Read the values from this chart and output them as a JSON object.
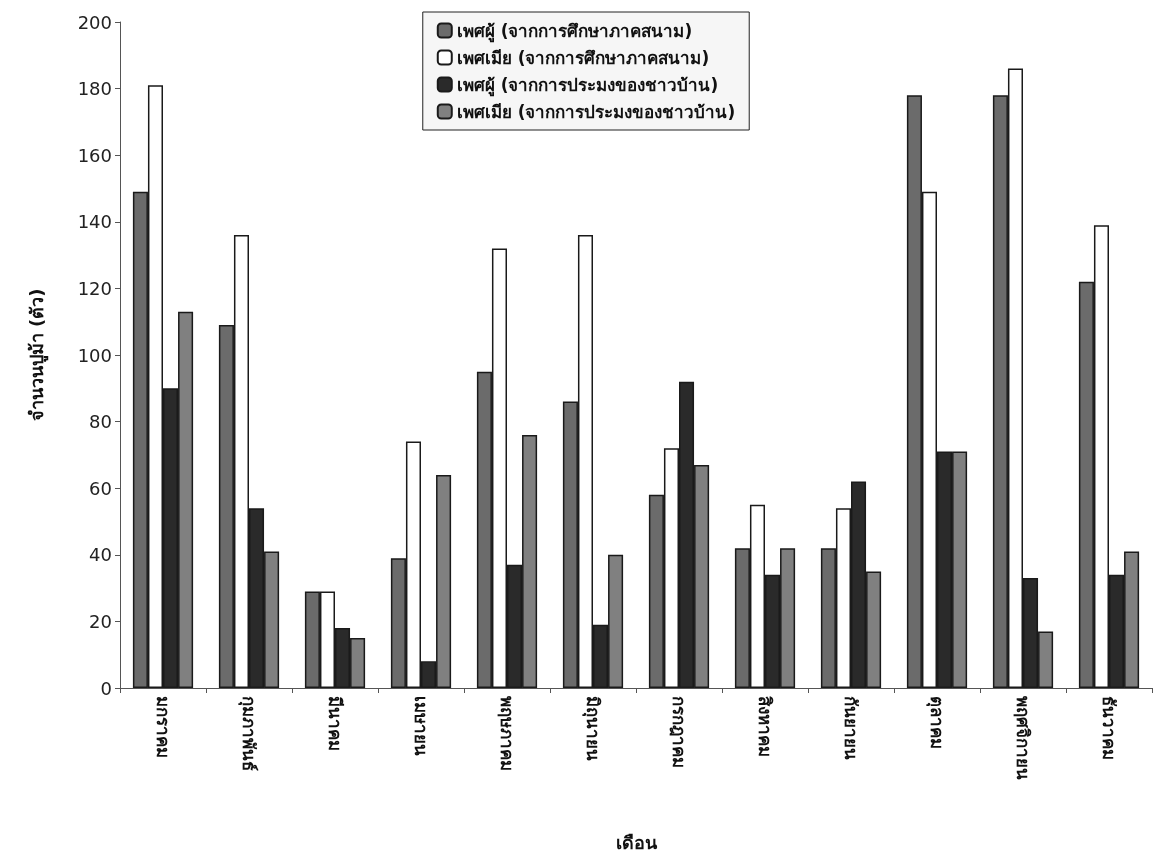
{
  "chart_data": {
    "type": "bar",
    "xlabel": "เดือน",
    "ylabel": "จำนวนปูม้า (ตัว)",
    "categories": [
      "มกราคม",
      "กุมภาพันธ์",
      "มีนาคม",
      "เมษายน",
      "พฤษภาคม",
      "มิถุนายน",
      "กรกฎาคม",
      "สิงหาคม",
      "กันยายน",
      "ตุลาคม",
      "พฤศจิกายน",
      "ธันวาคม"
    ],
    "series": [
      {
        "name": "เพศผู้ (จากการศึกษาภาคสนาม)",
        "color": "#6b6b6b",
        "values": [
          149,
          109,
          29,
          39,
          95,
          86,
          58,
          42,
          42,
          178,
          178,
          122
        ]
      },
      {
        "name": "เพศเมีย (จากการศึกษาภาคสนาม)",
        "color": "#ffffff",
        "values": [
          181,
          136,
          29,
          74,
          132,
          136,
          72,
          55,
          54,
          149,
          186,
          139
        ]
      },
      {
        "name": "เพศผู้ (จากการประมงของชาวบ้าน)",
        "color": "#2a2a2a",
        "values": [
          90,
          54,
          18,
          8,
          37,
          19,
          92,
          34,
          62,
          71,
          33,
          34
        ]
      },
      {
        "name": "เพศเมีย (จากการประมงของชาวบ้าน)",
        "color": "#808080",
        "values": [
          113,
          41,
          15,
          64,
          76,
          40,
          67,
          42,
          35,
          71,
          17,
          41
        ]
      }
    ],
    "ylim": [
      0,
      200
    ],
    "yticks": [
      0,
      20,
      40,
      60,
      80,
      100,
      120,
      140,
      160,
      180,
      200
    ],
    "grid": false,
    "legend": "top"
  }
}
